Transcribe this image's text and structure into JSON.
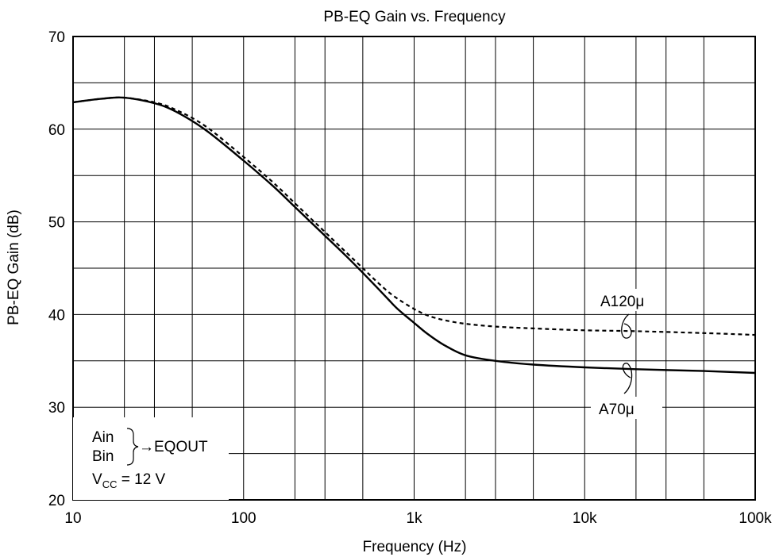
{
  "chart_data": {
    "type": "line",
    "title": "PB-EQ Gain vs. Frequency",
    "xlabel": "Frequency  (Hz)",
    "ylabel": "PB-EQ Gain  (dB)",
    "x_scale": "log",
    "xlim": [
      10,
      100000
    ],
    "ylim": [
      20,
      70
    ],
    "x_ticks": [
      10,
      100,
      1000,
      10000,
      100000
    ],
    "x_tick_labels": [
      "10",
      "100",
      "1k",
      "10k",
      "100k"
    ],
    "y_ticks": [
      20,
      30,
      40,
      50,
      60,
      70
    ],
    "y_tick_labels": [
      "20",
      "30",
      "40",
      "50",
      "60",
      "70"
    ],
    "grid": true,
    "series": [
      {
        "name": "A120μ",
        "style": "dashed",
        "x": [
          10,
          15,
          20,
          30,
          40,
          60,
          100,
          150,
          200,
          300,
          400,
          500,
          600,
          700,
          800,
          1000,
          1200,
          1500,
          2000,
          3000,
          5000,
          10000,
          20000,
          50000,
          100000
        ],
        "y": [
          62.9,
          63.3,
          63.4,
          62.9,
          62.1,
          60.3,
          57.0,
          54.2,
          52.0,
          48.9,
          46.7,
          45.0,
          43.6,
          42.5,
          41.7,
          40.6,
          39.9,
          39.4,
          39.0,
          38.7,
          38.5,
          38.3,
          38.2,
          38.0,
          37.8
        ]
      },
      {
        "name": "A70μ",
        "style": "solid",
        "x": [
          10,
          15,
          20,
          30,
          40,
          60,
          100,
          150,
          200,
          300,
          400,
          500,
          600,
          700,
          800,
          1000,
          1200,
          1500,
          2000,
          3000,
          5000,
          10000,
          20000,
          50000,
          100000
        ],
        "y": [
          62.9,
          63.3,
          63.4,
          62.8,
          61.9,
          59.9,
          56.6,
          53.8,
          51.6,
          48.5,
          46.3,
          44.5,
          43.0,
          41.7,
          40.6,
          39.1,
          37.9,
          36.7,
          35.6,
          35.0,
          34.6,
          34.3,
          34.1,
          33.9,
          33.7
        ]
      }
    ],
    "annotations": {
      "series_labels": [
        "A120μ",
        "A70μ"
      ],
      "condition_inputs": [
        "Ain",
        "Bin"
      ],
      "condition_output": "→EQOUT",
      "vcc_prefix": "V",
      "vcc_sub": "CC",
      "vcc_value": " = 12 V"
    }
  }
}
